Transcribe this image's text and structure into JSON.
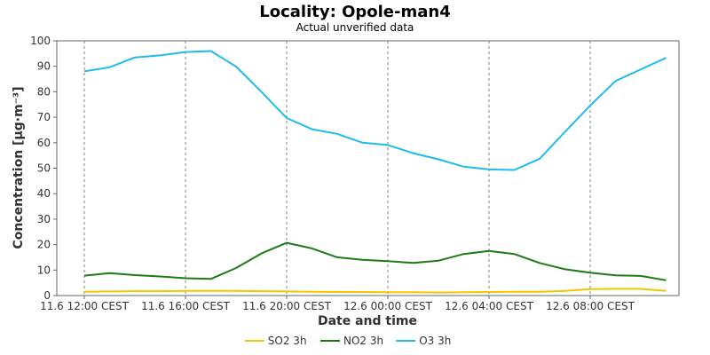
{
  "chart_data": {
    "type": "line",
    "title": "Locality: Opole-man4",
    "subtitle": "Actual unverified data",
    "xlabel": "Date and time",
    "ylabel": "Concentration [µg·m⁻³]",
    "ylim": [
      0,
      100
    ],
    "yticks": [
      0,
      10,
      20,
      30,
      40,
      50,
      60,
      70,
      80,
      90,
      100
    ],
    "x": [
      "2024-06-11 12:00",
      "2024-06-11 13:00",
      "2024-06-11 14:00",
      "2024-06-11 15:00",
      "2024-06-11 16:00",
      "2024-06-11 17:00",
      "2024-06-11 18:00",
      "2024-06-11 19:00",
      "2024-06-11 20:00",
      "2024-06-11 21:00",
      "2024-06-11 22:00",
      "2024-06-11 23:00",
      "2024-06-12 00:00",
      "2024-06-12 01:00",
      "2024-06-12 02:00",
      "2024-06-12 03:00",
      "2024-06-12 04:00",
      "2024-06-12 05:00",
      "2024-06-12 06:00",
      "2024-06-12 07:00",
      "2024-06-12 08:00",
      "2024-06-12 09:00",
      "2024-06-12 10:00",
      "2024-06-12 11:00"
    ],
    "xticks": [
      {
        "at": "2024-06-11 12:00",
        "label": "11.6 12:00 CEST"
      },
      {
        "at": "2024-06-11 16:00",
        "label": "11.6 16:00 CEST"
      },
      {
        "at": "2024-06-11 20:00",
        "label": "11.6 20:00 CEST"
      },
      {
        "at": "2024-06-12 00:00",
        "label": "12.6 00:00 CEST"
      },
      {
        "at": "2024-06-12 04:00",
        "label": "12.6 04:00 CEST"
      },
      {
        "at": "2024-06-12 08:00",
        "label": "12.6 08:00 CEST"
      }
    ],
    "grid": true,
    "legend_position": "bottom-center",
    "series": [
      {
        "name": "SO2 3h",
        "color": "#f2c500",
        "values": [
          1.5,
          1.6,
          1.7,
          1.7,
          1.8,
          1.8,
          1.8,
          1.7,
          1.6,
          1.5,
          1.4,
          1.4,
          1.3,
          1.3,
          1.2,
          1.3,
          1.4,
          1.5,
          1.5,
          1.8,
          2.5,
          2.6,
          2.6,
          1.8
        ]
      },
      {
        "name": "NO2 3h",
        "color": "#1b7c12",
        "values": [
          7.8,
          8.8,
          8.0,
          7.5,
          6.8,
          6.5,
          10.8,
          16.5,
          20.7,
          18.5,
          15.0,
          14.0,
          13.5,
          12.8,
          13.7,
          16.3,
          17.5,
          16.3,
          12.8,
          10.3,
          9.0,
          7.9,
          7.7,
          6.0
        ]
      },
      {
        "name": "O3 3h",
        "color": "#1cbcef",
        "values": [
          88.0,
          89.6,
          93.5,
          94.3,
          95.6,
          96.0,
          89.9,
          80.0,
          69.7,
          65.3,
          63.5,
          60.0,
          59.1,
          55.9,
          53.5,
          50.6,
          49.5,
          49.3,
          53.7,
          64.2,
          74.6,
          84.2,
          88.8,
          93.3
        ]
      }
    ]
  }
}
